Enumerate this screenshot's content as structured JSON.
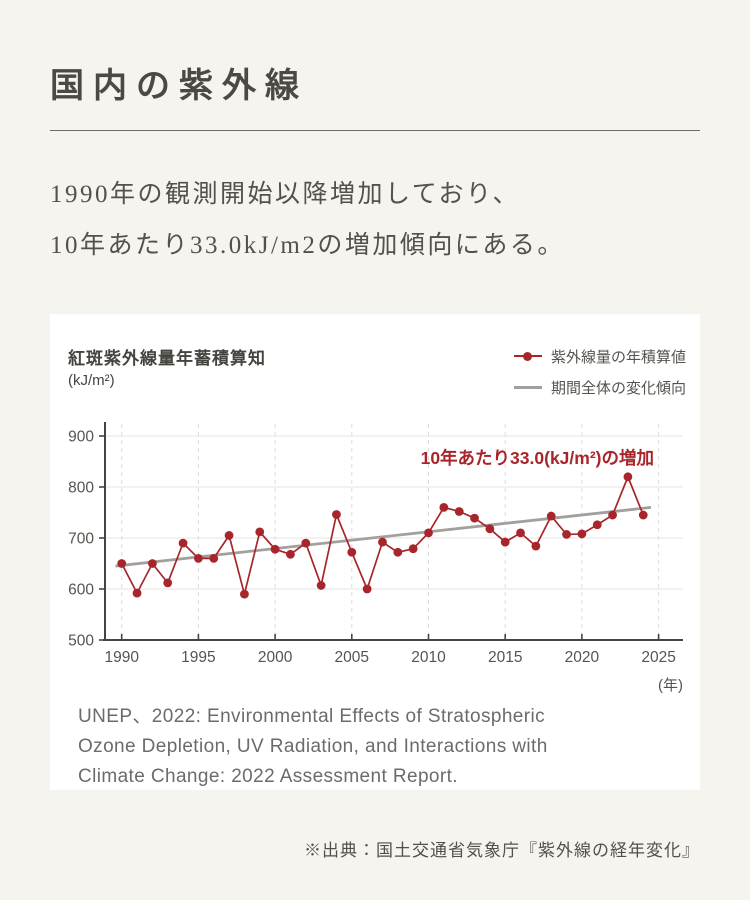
{
  "header": {
    "title": "国内の紫外線"
  },
  "intro": {
    "line1": "1990年の観測開始以降増加しており、",
    "line2": "10年あたり33.0kJ/m2の増加傾向にある。"
  },
  "chart": {
    "title": "紅斑紫外線量年蓄積算知",
    "unit_label": "(kJ/m²)",
    "legend": {
      "series": "紫外線量の年積算値",
      "trend": "期間全体の変化傾向"
    },
    "annotation": "10年あたり33.0(kJ/m²)の増加",
    "x_axis_unit": "(年)",
    "citation_lines": [
      "UNEP、2022: Environmental Effects of Stratospheric",
      "Ozone Depletion, UV Radiation, and Interactions with",
      "Climate Change: 2022 Assessment Report."
    ]
  },
  "chart_data": {
    "type": "line",
    "title": "紅斑紫外線量年蓄積算知",
    "ylabel": "(kJ/m²)",
    "xlabel": "(年)",
    "xlim": [
      1989,
      2026.5
    ],
    "ylim": [
      500,
      930
    ],
    "xticks": [
      1990,
      1995,
      2000,
      2005,
      2010,
      2015,
      2020,
      2025
    ],
    "yticks": [
      500,
      600,
      700,
      800,
      900
    ],
    "grid": true,
    "legend_position": "top-right",
    "annotation": "10年あたり33.0(kJ/m²)の増加",
    "series": [
      {
        "name": "紫外線量の年積算値",
        "x": [
          1990,
          1991,
          1992,
          1993,
          1994,
          1995,
          1996,
          1997,
          1998,
          1999,
          2000,
          2001,
          2002,
          2003,
          2004,
          2005,
          2006,
          2007,
          2008,
          2009,
          2010,
          2011,
          2012,
          2013,
          2014,
          2015,
          2016,
          2017,
          2018,
          2019,
          2020,
          2021,
          2022,
          2023,
          2024
        ],
        "values": [
          650,
          592,
          650,
          612,
          690,
          660,
          660,
          705,
          590,
          712,
          678,
          668,
          690,
          607,
          746,
          672,
          600,
          692,
          672,
          679,
          710,
          760,
          752,
          739,
          718,
          692,
          710,
          684,
          743,
          707,
          708,
          726,
          745,
          820,
          745
        ]
      }
    ],
    "trend": {
      "name": "期間全体の変化傾向",
      "x": [
        1989.6,
        2024.5
      ],
      "values": [
        645,
        760
      ],
      "slope_per_decade_kj_m2": 33.0
    },
    "colors": {
      "series": "#a8262b",
      "trend": "#a3a09c",
      "axis": "#454540"
    }
  },
  "footer": {
    "source": "※出典：国土交通省気象庁『紫外線の経年変化』"
  },
  "colors": {
    "background": "#f6f4ef",
    "card": "#ffffff",
    "accent_red": "#a8262b"
  }
}
